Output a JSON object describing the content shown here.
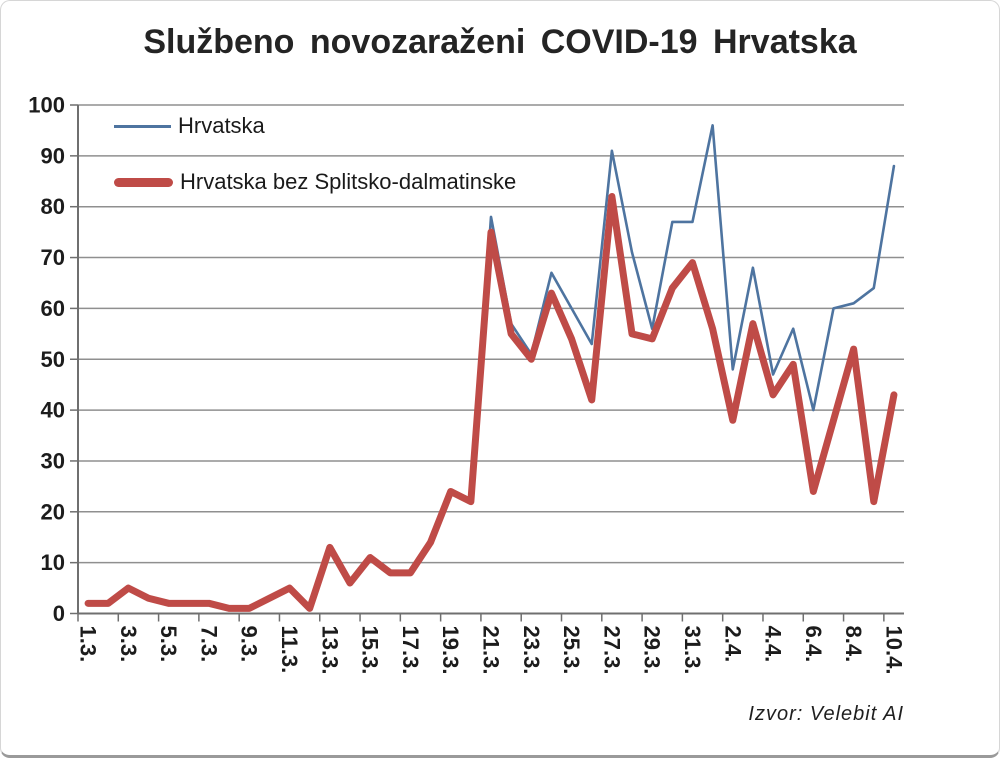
{
  "title": "Službeno novozaraženi COVID-19 Hrvatska",
  "source_note": "Izvor: Velebit AI",
  "legend": {
    "items": [
      {
        "label": "Hrvatska",
        "color": "#4e74a0"
      },
      {
        "label": "Hrvatska bez Splitsko-dalmatinske",
        "color": "#bf4b47"
      }
    ]
  },
  "chart_data": {
    "type": "line",
    "title": "Službeno novozaraženi COVID-19 Hrvatska",
    "xlabel": "",
    "ylabel": "",
    "ylim": [
      0,
      100
    ],
    "ytick_step": 10,
    "grid": true,
    "legend_position": "top-left-inside",
    "axis_color": "#6f6f6f",
    "grid_color": "#8f8f8f",
    "tick_label_color": "#1c1c1c",
    "x_label_every": 2,
    "categories": [
      "1.3.",
      "2.3.",
      "3.3.",
      "4.3.",
      "5.3.",
      "6.3.",
      "7.3.",
      "8.3.",
      "9.3.",
      "10.3.",
      "11.3.",
      "12.3.",
      "13.3.",
      "14.3.",
      "15.3.",
      "16.3.",
      "17.3.",
      "18.3.",
      "19.3.",
      "20.3.",
      "21.3.",
      "22.3.",
      "23.3.",
      "24.3.",
      "25.3.",
      "26.3.",
      "27.3.",
      "28.3.",
      "29.3.",
      "30.3.",
      "31.3.",
      "1.4.",
      "2.4.",
      "3.4.",
      "4.4.",
      "5.4.",
      "6.4.",
      "7.4.",
      "8.4.",
      "9.4.",
      "10.4."
    ],
    "series": [
      {
        "name": "Hrvatska",
        "color": "#4e74a0",
        "width": 2.6,
        "values": [
          2,
          2,
          5,
          3,
          2,
          2,
          2,
          1,
          1,
          3,
          5,
          1,
          13,
          6,
          11,
          8,
          8,
          14,
          24,
          22,
          78,
          57,
          51,
          67,
          60,
          53,
          91,
          71,
          56,
          77,
          77,
          96,
          48,
          68,
          47,
          56,
          40,
          60,
          61,
          64,
          88
        ]
      },
      {
        "name": "Hrvatska bez Splitsko-dalmatinske",
        "color": "#bf4b47",
        "width": 7,
        "values": [
          2,
          2,
          5,
          3,
          2,
          2,
          2,
          1,
          1,
          3,
          5,
          1,
          13,
          6,
          11,
          8,
          8,
          14,
          24,
          22,
          75,
          55,
          50,
          63,
          54,
          42,
          82,
          55,
          54,
          64,
          69,
          56,
          38,
          57,
          43,
          49,
          24,
          38,
          52,
          22,
          43
        ]
      }
    ]
  }
}
